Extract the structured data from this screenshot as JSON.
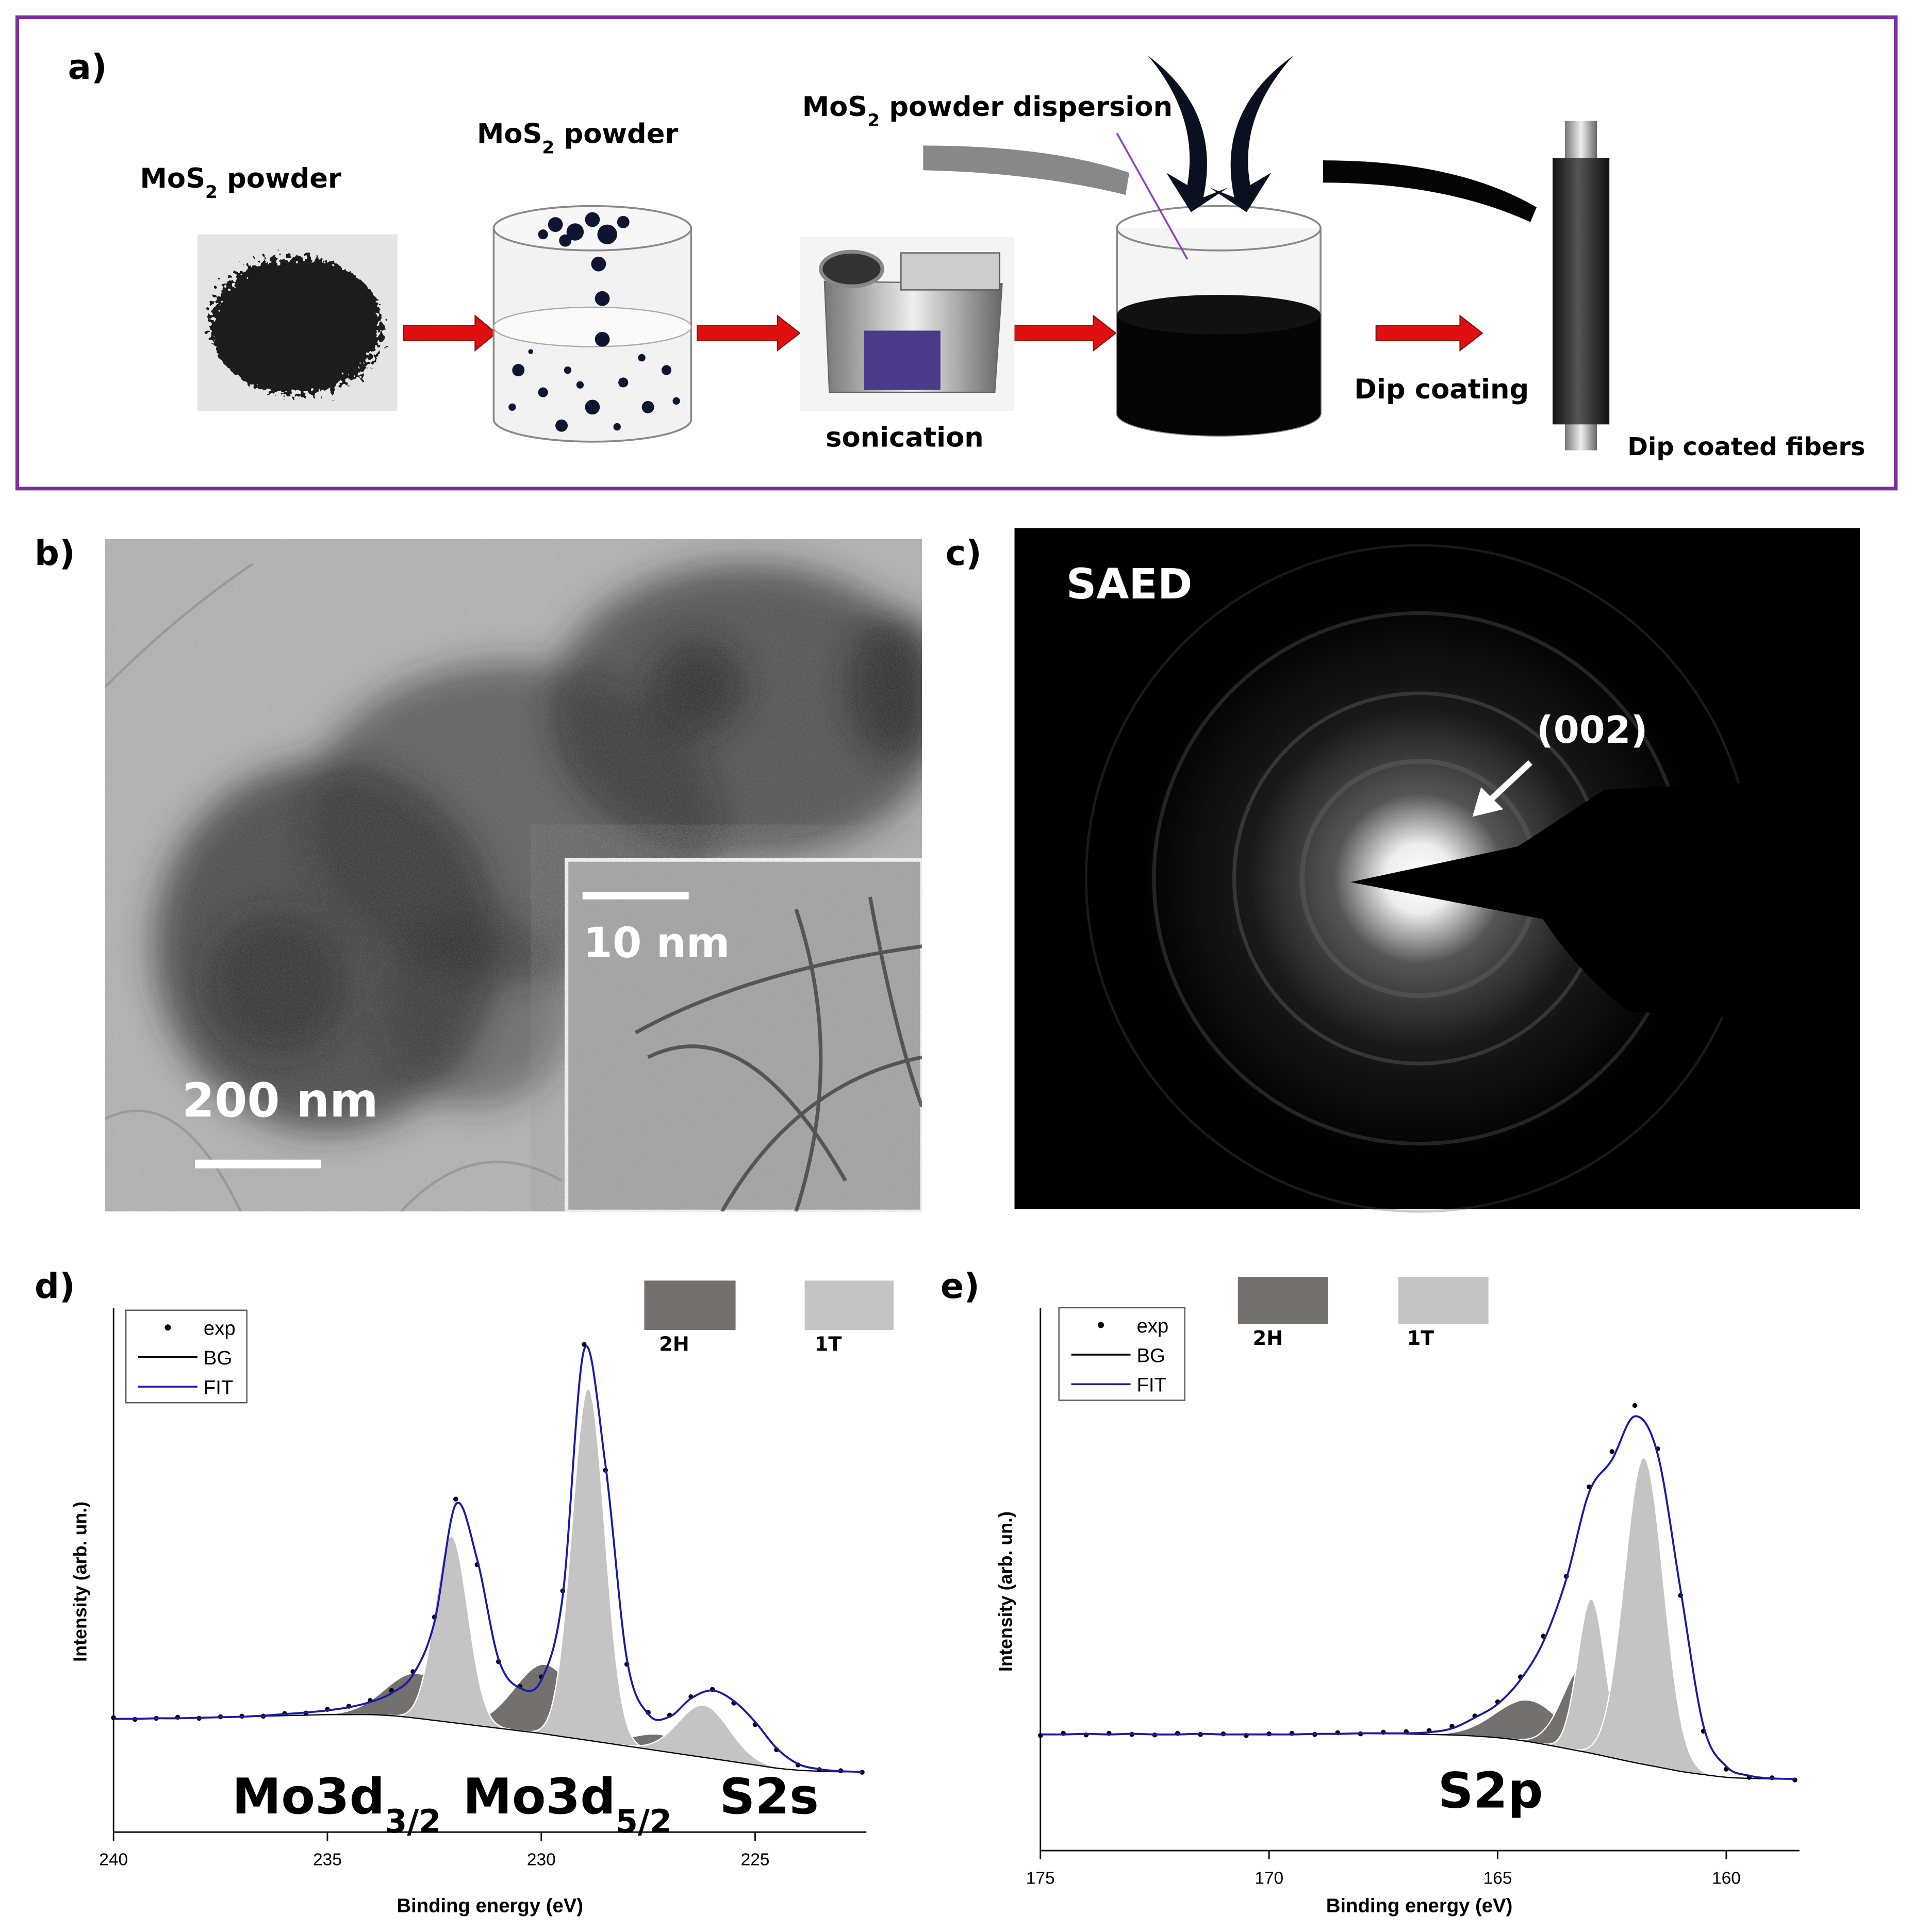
{
  "panels": {
    "a": {
      "label": "a)",
      "powder_label": {
        "pre": "MoS",
        "sub": "2",
        "post": " powder"
      },
      "beaker_label": {
        "pre": "MoS",
        "sub": "2",
        "post": " powder"
      },
      "dispersion_label": {
        "pre": "MoS",
        "sub": "2",
        "post": " powder dispersion"
      },
      "sonication": "sonication",
      "dip_coating": "Dip coating",
      "fibers": "Dip coated fibers"
    },
    "b": {
      "label": "b)",
      "scale_main": "200 nm",
      "scale_inset": "10 nm"
    },
    "c": {
      "label": "c)",
      "title": "SAED",
      "plane": "(002)"
    }
  },
  "chart_data": [
    {
      "type": "line",
      "panel_label": "d)",
      "xlabel": "Binding energy (eV)",
      "ylabel": "Intensity (arb. un.)",
      "xlim": [
        240,
        222.4
      ],
      "xticks": [
        240,
        235,
        230,
        225
      ],
      "ylim": [
        0,
        100
      ],
      "x": [
        240,
        239.5,
        239,
        238.5,
        238,
        237.5,
        237,
        236.5,
        236,
        235.5,
        235,
        234.5,
        234,
        233.5,
        233,
        232.5,
        232,
        231.5,
        231,
        230.5,
        230,
        229.5,
        229,
        228.5,
        228,
        227.5,
        227,
        226.5,
        226,
        225.5,
        225,
        224.5,
        224,
        223.5,
        223,
        222.5
      ],
      "series": [
        {
          "name": "exp",
          "color": "#000000",
          "style": "dots",
          "values": [
            21.8,
            21.5,
            21.7,
            21.9,
            21.7,
            22,
            22.1,
            22.1,
            22.6,
            22.7,
            23.4,
            24,
            25.1,
            27,
            30.6,
            41,
            63.5,
            51,
            32.5,
            27.8,
            29.6,
            46,
            93,
            69,
            32,
            22.8,
            22.3,
            25.8,
            27.2,
            24.6,
            20.5,
            15.7,
            12.8,
            11.9,
            11.7,
            11.4
          ]
        },
        {
          "name": "BG",
          "color": "#000000",
          "style": "line",
          "values": [
            21.6,
            21.6,
            21.7,
            21.7,
            21.8,
            21.9,
            22,
            22.1,
            22.2,
            22.3,
            22.4,
            22.4,
            22.4,
            22.2,
            21.8,
            21.3,
            20.8,
            20.3,
            19.8,
            19.3,
            18.8,
            18.2,
            17.6,
            17,
            16.4,
            15.8,
            15.2,
            14.6,
            14,
            13.4,
            12.8,
            12.2,
            11.8,
            11.6,
            11.5,
            11.5
          ]
        },
        {
          "name": "FIT",
          "color": "#1a1aa8",
          "style": "line",
          "values": [
            21.6,
            21.6,
            21.7,
            21.7,
            21.8,
            21.9,
            22,
            22.2,
            22.5,
            22.8,
            23.2,
            23.8,
            24.8,
            26.5,
            30,
            40,
            62.5,
            52,
            33,
            27.5,
            29,
            45,
            92,
            70,
            33,
            22.5,
            22,
            25.5,
            27,
            25,
            21,
            16,
            13,
            12,
            11.6,
            11.5
          ]
        }
      ],
      "components": [
        {
          "name": "2H",
          "color": "#747070",
          "peaks": [
            {
              "center": 232.9,
              "height": 30.3,
              "fwhm": 1.7
            },
            {
              "center": 229.9,
              "height": 32,
              "fwhm": 1.7
            },
            {
              "center": 227.2,
              "height": 18.6,
              "fwhm": 1.6
            }
          ]
        },
        {
          "name": "1T",
          "color": "#c4c4c4",
          "peaks": [
            {
              "center": 232.1,
              "height": 56.5,
              "fwhm": 0.9
            },
            {
              "center": 228.9,
              "height": 84.7,
              "fwhm": 0.9
            },
            {
              "center": 226.2,
              "height": 24.2,
              "fwhm": 1.4
            }
          ]
        }
      ],
      "annotations": [
        {
          "pre": "Mo3d",
          "sub": "3/2"
        },
        {
          "pre": "Mo3d",
          "sub": "5/2"
        },
        {
          "pre": "S2s"
        }
      ]
    },
    {
      "type": "line",
      "panel_label": "e)",
      "xlabel": "Binding energy (eV)",
      "ylabel": "Intensity (arb. un.)",
      "xlim": [
        175,
        158.4
      ],
      "xticks": [
        175,
        170,
        165,
        160
      ],
      "ylim": [
        0,
        100
      ],
      "x": [
        175,
        174.5,
        174,
        173.5,
        173,
        172.5,
        172,
        171.5,
        171,
        170.5,
        170,
        169.5,
        169,
        168.5,
        168,
        167.5,
        167,
        166.5,
        166,
        165.5,
        165,
        164.5,
        164,
        163.5,
        163,
        162.5,
        162,
        161.5,
        161,
        160.5,
        160,
        159.5,
        159,
        158.5
      ],
      "series": [
        {
          "name": "exp",
          "color": "#000000",
          "style": "dots",
          "values": [
            21.2,
            21.6,
            21.3,
            21.6,
            21.4,
            21.3,
            21.6,
            21.4,
            21.5,
            21.2,
            21.5,
            21.6,
            21.4,
            21.7,
            21.5,
            21.8,
            21.9,
            22.1,
            22.9,
            24.8,
            27.4,
            32,
            39.5,
            50.5,
            67,
            73.5,
            82,
            74,
            47,
            22,
            15,
            13.5,
            13.4,
            13
          ]
        },
        {
          "name": "BG",
          "color": "#000000",
          "style": "line",
          "values": [
            21.4,
            21.4,
            21.5,
            21.4,
            21.5,
            21.4,
            21.4,
            21.5,
            21.4,
            21.4,
            21.4,
            21.4,
            21.5,
            21.5,
            21.6,
            21.6,
            21.5,
            21.4,
            21.3,
            21.1,
            20.8,
            20.3,
            19.6,
            18.8,
            18,
            17.1,
            16.2,
            15.4,
            14.6,
            14,
            13.5,
            13.3,
            13.2,
            13.2
          ]
        },
        {
          "name": "FIT",
          "color": "#1a1aa8",
          "style": "line",
          "values": [
            21.4,
            21.4,
            21.5,
            21.4,
            21.5,
            21.4,
            21.4,
            21.5,
            21.4,
            21.4,
            21.4,
            21.4,
            21.5,
            21.5,
            21.6,
            21.6,
            21.6,
            21.8,
            22.5,
            24.5,
            27,
            31.5,
            38.5,
            50,
            66,
            72,
            80,
            73,
            48,
            23,
            15.5,
            13.8,
            13.3,
            13.2
          ]
        }
      ],
      "components": [
        {
          "name": "2H",
          "color": "#747070",
          "peaks": [
            {
              "center": 164.3,
              "height": 27.7,
              "fwhm": 1.7
            },
            {
              "center": 163.1,
              "height": 34.1,
              "fwhm": 1.1
            }
          ]
        },
        {
          "name": "1T",
          "color": "#c4c4c4",
          "peaks": [
            {
              "center": 162.95,
              "height": 46.4,
              "fwhm": 0.7
            },
            {
              "center": 161.8,
              "height": 72.5,
              "fwhm": 1.0
            }
          ]
        }
      ],
      "annotations": [
        {
          "pre": "S2p"
        }
      ]
    }
  ]
}
